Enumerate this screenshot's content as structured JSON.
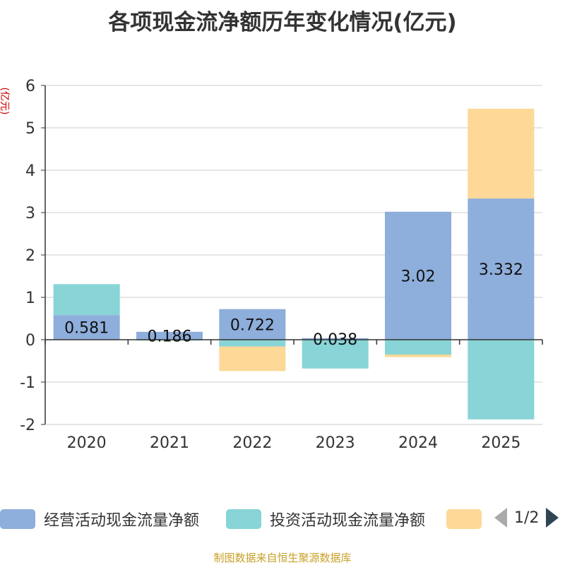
{
  "chart_data": {
    "type": "bar",
    "stacked": true,
    "title": "各项现金流净额历年变化情况(亿元)",
    "ylabel": "(亿元)",
    "ylim": [
      -2,
      6
    ],
    "yticks": [
      -2,
      -1,
      0,
      1,
      2,
      3,
      4,
      5,
      6
    ],
    "grid": true,
    "categories": [
      "2020",
      "2021",
      "2022",
      "2023",
      "2024",
      "2025"
    ],
    "series": [
      {
        "name": "经营活动现金流量净额",
        "color": "#8eaedb",
        "values": [
          0.581,
          0.186,
          0.722,
          0.038,
          3.02,
          3.332
        ],
        "labels": [
          "0.581",
          "0.186",
          "0.722",
          "0.038",
          "3.02",
          "3.332"
        ]
      },
      {
        "name": "投资活动现金流量净额",
        "color": "#88d4d6",
        "values": [
          0.73,
          -0.02,
          -0.16,
          -0.68,
          -0.35,
          -1.88
        ]
      },
      {
        "name": "",
        "color": "#fdd897",
        "values": [
          0,
          0,
          -0.58,
          0,
          -0.06,
          2.12
        ]
      }
    ],
    "legend_position": "bottom",
    "legend_page": "1/2"
  },
  "footer": "制图数据来自恒生聚源数据库"
}
